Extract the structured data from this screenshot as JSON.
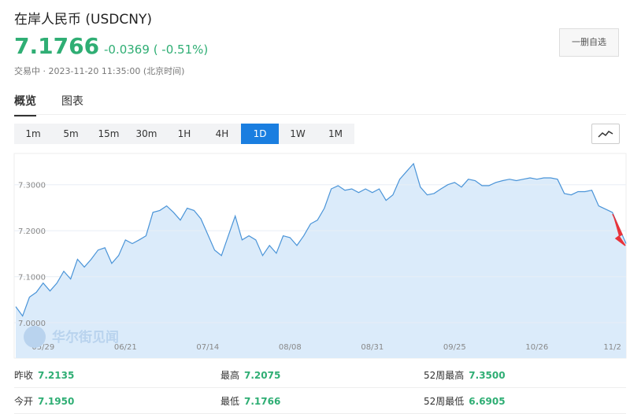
{
  "header": {
    "title": "在岸人民币 (USDCNY)",
    "price": "7.1766",
    "change": "-0.0369",
    "change_pct": "( -0.51%)",
    "status": "交易中 · 2023-11-20 11:35:00 (北京时间)",
    "button": "一删自选"
  },
  "tabs": [
    "概览",
    "图表"
  ],
  "ranges": [
    "1m",
    "5m",
    "15m",
    "30m",
    "1H",
    "4H",
    "1D",
    "1W",
    "1M"
  ],
  "active_range": "1D",
  "chart_data": {
    "type": "area",
    "watermark": "华尔街见闻",
    "categories": [
      null,
      null,
      null,
      null,
      "05/29",
      null,
      null,
      null,
      null,
      null,
      null,
      null,
      null,
      null,
      null,
      null,
      "06/21",
      null,
      null,
      null,
      null,
      null,
      null,
      null,
      null,
      null,
      null,
      null,
      "07/14",
      null,
      null,
      null,
      null,
      null,
      null,
      null,
      null,
      null,
      null,
      null,
      "08/08",
      null,
      null,
      null,
      null,
      null,
      null,
      null,
      null,
      null,
      null,
      null,
      "08/31",
      null,
      null,
      null,
      null,
      null,
      null,
      null,
      null,
      null,
      null,
      null,
      "09/25",
      null,
      null,
      null,
      null,
      null,
      null,
      null,
      null,
      null,
      null,
      null,
      "10/26",
      null,
      null,
      null,
      null,
      null,
      null,
      null,
      null,
      null,
      null,
      "11/2",
      null,
      null
    ],
    "series": [
      {
        "color": "#4a94d8",
        "fill": "#dbebfa",
        "values": [
          7.035,
          7.0145,
          7.0556,
          7.066,
          7.0863,
          7.069,
          7.086,
          7.112,
          7.095,
          7.138,
          7.121,
          7.138,
          7.158,
          7.163,
          7.129,
          7.146,
          7.18,
          7.172,
          7.18,
          7.189,
          7.24,
          7.244,
          7.254,
          7.24,
          7.223,
          7.249,
          7.244,
          7.226,
          7.192,
          7.158,
          7.146,
          7.189,
          7.232,
          7.18,
          7.189,
          7.18,
          7.146,
          7.168,
          7.151,
          7.189,
          7.185,
          7.168,
          7.189,
          7.215,
          7.223,
          7.249,
          7.291,
          7.298,
          7.288,
          7.291,
          7.283,
          7.291,
          7.283,
          7.291,
          7.266,
          7.278,
          7.312,
          7.329,
          7.346,
          7.295,
          7.278,
          7.281,
          7.291,
          7.3,
          7.305,
          7.295,
          7.312,
          7.309,
          7.298,
          7.298,
          7.305,
          7.309,
          7.312,
          7.309,
          7.312,
          7.315,
          7.312,
          7.315,
          7.315,
          7.312,
          7.281,
          7.278,
          7.285,
          7.285,
          7.288,
          7.254,
          7.247,
          7.24,
          7.206,
          7.172
        ]
      }
    ],
    "ylim": [
      6.923,
      7.368
    ],
    "yticks": [
      {
        "value": 7.0,
        "label": "7.0000"
      },
      {
        "value": 7.1,
        "label": "7.1000"
      },
      {
        "value": 7.2,
        "label": "7.2000"
      },
      {
        "value": 7.3,
        "label": "7.3000"
      }
    ],
    "grid": true
  },
  "stats": [
    [
      {
        "label": "昨收",
        "value": "7.2135"
      },
      {
        "label": "最高",
        "value": "7.2075"
      },
      {
        "label": "52周最高",
        "value": "7.3500"
      }
    ],
    [
      {
        "label": "今开",
        "value": "7.1950"
      },
      {
        "label": "最低",
        "value": "7.1766"
      },
      {
        "label": "52周最低",
        "value": "6.6905"
      }
    ]
  ]
}
